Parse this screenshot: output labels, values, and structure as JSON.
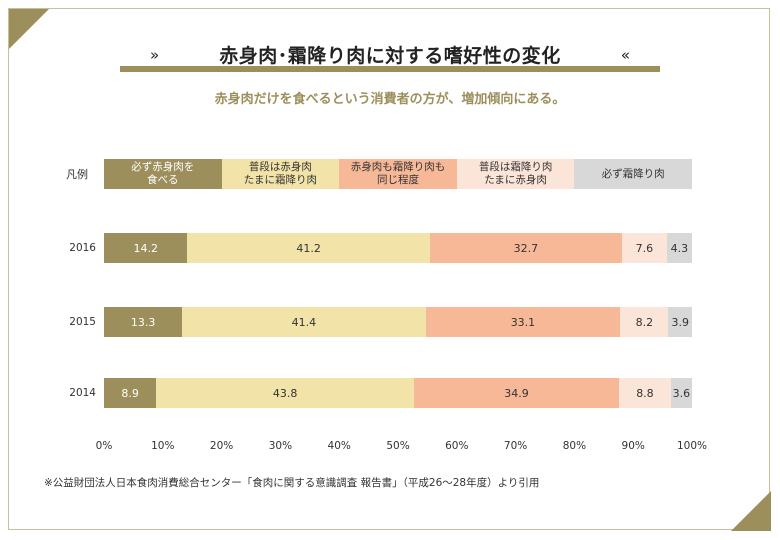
{
  "title": "赤身肉･霜降り肉に対する嗜好性の変化",
  "title_chevron_left": "»",
  "title_chevron_right": "«",
  "subtitle": "赤身肉だけを食べるという消費者の方が、増加傾向にある。",
  "legend_label": "凡例",
  "colors": [
    "#9c8f5c",
    "#f2e3a8",
    "#f7b898",
    "#fbe4d8",
    "#d8d8d8"
  ],
  "text_colors": [
    "#ffffff",
    "#333333",
    "#333333",
    "#333333",
    "#333333"
  ],
  "chart_data": {
    "type": "bar",
    "orientation": "horizontal",
    "stacked": true,
    "title": "赤身肉･霜降り肉に対する嗜好性の変化",
    "categories": [
      "2016",
      "2015",
      "2014"
    ],
    "series": [
      {
        "name": "必ず赤身肉を\n食べる",
        "values": [
          14.2,
          13.3,
          8.9
        ]
      },
      {
        "name": "普段は赤身肉\nたまに霜降り肉",
        "values": [
          41.2,
          41.4,
          43.8
        ]
      },
      {
        "name": "赤身肉も霜降り肉も\n同じ程度",
        "values": [
          32.7,
          33.1,
          34.9
        ]
      },
      {
        "name": "普段は霜降り肉\nたまに赤身肉",
        "values": [
          7.6,
          8.2,
          8.8
        ]
      },
      {
        "name": "必ず霜降り肉",
        "values": [
          4.3,
          3.9,
          3.6
        ]
      }
    ],
    "xlim": [
      0,
      100
    ],
    "xticks": [
      "0%",
      "10%",
      "20%",
      "30%",
      "40%",
      "50%",
      "60%",
      "70%",
      "80%",
      "90%",
      "100%"
    ],
    "legend": "top"
  },
  "note": "※公益財団法人日本食肉消費総合センター「食肉に関する意識調査 報告書」（平成26～28年度）より引用"
}
